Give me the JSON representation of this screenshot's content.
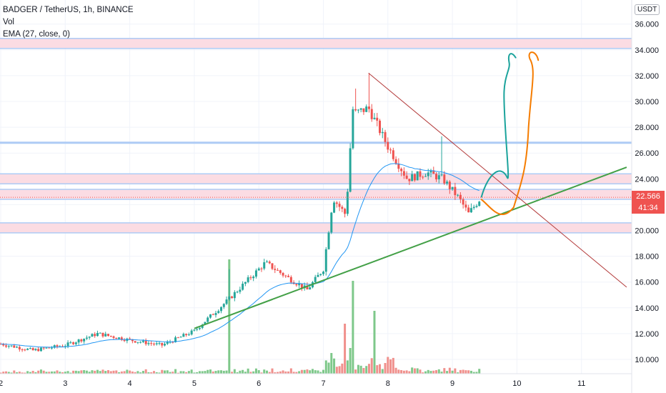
{
  "header": {
    "title": "BADGER / TetherUS, 1h, BINANCE",
    "vol_label": "Vol",
    "ema_label": "EMA (27, close, 0)",
    "currency": "USDT"
  },
  "current_price": {
    "value": "22.566",
    "countdown": "41:34",
    "color": "#ef5350"
  },
  "colors": {
    "up": "#26a69a",
    "down": "#ef5350",
    "vol_up": "#7ec88a",
    "vol_down": "#f0908c",
    "ema": "#2196f3",
    "support_zone_blue": "#aecbf5",
    "resistance_zone_pink": "#fbdce3",
    "trendline_green": "#43a047",
    "trendline_red": "#b33a3a",
    "drawing_teal": "#1ba39c",
    "drawing_orange": "#f57c00"
  },
  "chart_data": {
    "type": "candlestick",
    "title": "BADGER / TetherUS, 1h, BINANCE",
    "x_ticks": [
      "2",
      "3",
      "4",
      "5",
      "6",
      "7",
      "8",
      "9",
      "10",
      "11"
    ],
    "y_ticks": [
      "10.000",
      "12.000",
      "14.000",
      "16.000",
      "18.000",
      "20.000",
      "22.000",
      "24.000",
      "26.000",
      "28.000",
      "30.000",
      "32.000",
      "34.000",
      "36.000"
    ],
    "ylim": [
      9.0,
      36.5
    ],
    "xlim": [
      2.0,
      11.7
    ],
    "grid": true,
    "key_points": [
      {
        "x": 2.0,
        "y": 11.2
      },
      {
        "x": 2.5,
        "y": 10.7
      },
      {
        "x": 3.0,
        "y": 11.1
      },
      {
        "x": 3.5,
        "y": 12.0
      },
      {
        "x": 4.0,
        "y": 11.5
      },
      {
        "x": 4.5,
        "y": 11.1
      },
      {
        "x": 5.0,
        "y": 12.2
      },
      {
        "x": 5.5,
        "y": 14.5
      },
      {
        "x": 6.1,
        "y": 17.5
      },
      {
        "x": 6.4,
        "y": 16.5
      },
      {
        "x": 6.75,
        "y": 15.4
      },
      {
        "x": 7.0,
        "y": 17.0
      },
      {
        "x": 7.15,
        "y": 22.5
      },
      {
        "x": 7.35,
        "y": 21.2
      },
      {
        "x": 7.45,
        "y": 29.0
      },
      {
        "x": 7.7,
        "y": 29.5
      },
      {
        "x": 8.0,
        "y": 26.5
      },
      {
        "x": 8.3,
        "y": 24.0
      },
      {
        "x": 8.6,
        "y": 24.5
      },
      {
        "x": 8.85,
        "y": 24.0
      },
      {
        "x": 9.1,
        "y": 22.5
      },
      {
        "x": 9.25,
        "y": 21.3
      },
      {
        "x": 9.45,
        "y": 22.6
      }
    ],
    "ema_period": 27,
    "current_value": 22.566,
    "horizontal_levels": [
      {
        "value": 34.5,
        "style": "pink-zone"
      },
      {
        "value": 26.8,
        "style": "blue-line"
      },
      {
        "value": 24.0,
        "style": "pink-zone"
      },
      {
        "value": 22.8,
        "style": "pink-zone"
      },
      {
        "value": 20.2,
        "style": "pink-zone"
      }
    ],
    "trendlines": [
      {
        "name": "ascending support",
        "from": [
          5.0,
          12.4
        ],
        "to": [
          11.7,
          24.9
        ]
      },
      {
        "name": "descending resistance",
        "from": [
          7.7,
          32.2
        ],
        "to": [
          11.7,
          15.6
        ]
      }
    ]
  }
}
